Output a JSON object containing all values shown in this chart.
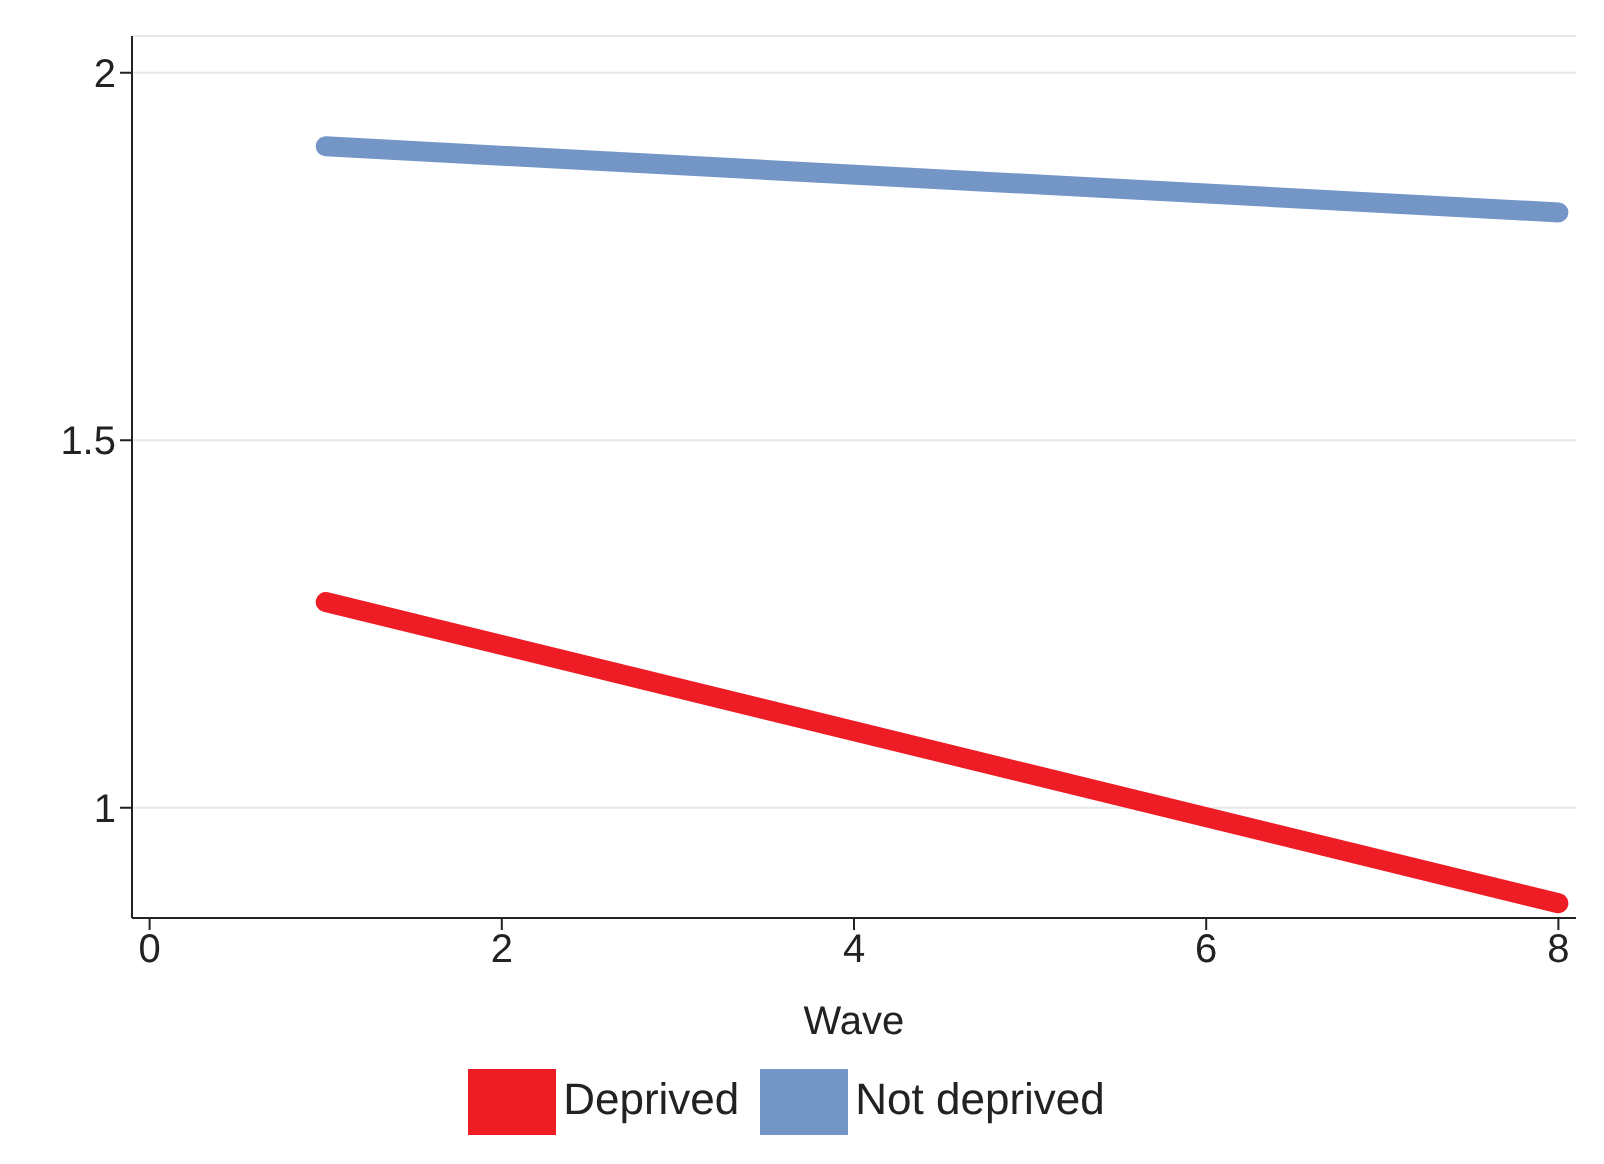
{
  "chart_data": {
    "type": "line",
    "xlabel": "Wave",
    "x": [
      1,
      8
    ],
    "series": [
      {
        "name": "Not deprived",
        "color": "#7396c6",
        "values": [
          1.9,
          1.81
        ]
      },
      {
        "name": "Deprived",
        "color": "#ee1c25",
        "values": [
          1.28,
          0.87
        ]
      }
    ],
    "xlim": [
      -0.1,
      8.1
    ],
    "xticks": [
      0,
      2,
      4,
      6,
      8
    ],
    "ylim": [
      0.85,
      2.05
    ],
    "yticks": [
      1,
      1.5,
      2
    ],
    "grid": "y",
    "legend": "bottom",
    "marker": "none",
    "line_style": "solid"
  }
}
